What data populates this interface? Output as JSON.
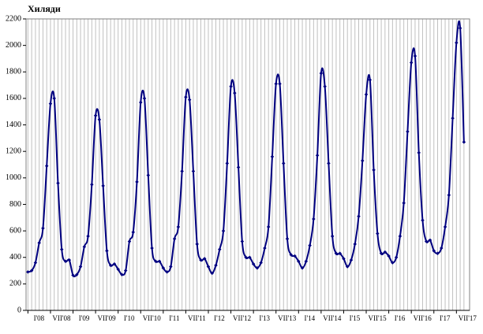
{
  "chart_data": {
    "type": "line",
    "title": "Хиляди",
    "categories": [
      "I'08",
      null,
      null,
      null,
      null,
      null,
      "VII'08",
      null,
      null,
      null,
      null,
      null,
      "I'09",
      null,
      null,
      null,
      null,
      null,
      "VII'09",
      null,
      null,
      null,
      null,
      null,
      "I'10",
      null,
      null,
      null,
      null,
      null,
      "VII'10",
      null,
      null,
      null,
      null,
      null,
      "I'11",
      null,
      null,
      null,
      null,
      null,
      "VII'11",
      null,
      null,
      null,
      null,
      null,
      "I'12",
      null,
      null,
      null,
      null,
      null,
      "VII'12",
      null,
      null,
      null,
      null,
      null,
      "I'13",
      null,
      null,
      null,
      null,
      null,
      "VII'13",
      null,
      null,
      null,
      null,
      null,
      "I'14",
      null,
      null,
      null,
      null,
      null,
      "VII'14",
      null,
      null,
      null,
      null,
      null,
      "I'15",
      null,
      null,
      null,
      null,
      null,
      "VII'15",
      null,
      null,
      null,
      null,
      null,
      "I'16",
      null,
      null,
      null,
      null,
      null,
      "VII'16",
      null,
      null,
      null,
      null,
      null,
      "I'17",
      null,
      null,
      null,
      null,
      null,
      "VII'17",
      null,
      null
    ],
    "values": [
      290,
      300,
      360,
      510,
      620,
      1090,
      1560,
      1600,
      960,
      460,
      370,
      380,
      265,
      270,
      330,
      480,
      560,
      950,
      1470,
      1440,
      940,
      450,
      340,
      350,
      310,
      270,
      300,
      520,
      590,
      970,
      1570,
      1600,
      1020,
      470,
      370,
      370,
      320,
      290,
      330,
      540,
      630,
      1050,
      1610,
      1590,
      1050,
      500,
      380,
      390,
      330,
      280,
      340,
      460,
      600,
      1110,
      1690,
      1640,
      1080,
      520,
      400,
      400,
      350,
      320,
      360,
      470,
      630,
      1160,
      1710,
      1710,
      1110,
      540,
      420,
      410,
      370,
      320,
      370,
      490,
      690,
      1170,
      1790,
      1690,
      1110,
      560,
      430,
      430,
      390,
      330,
      380,
      500,
      710,
      1130,
      1630,
      1740,
      1060,
      580,
      430,
      440,
      410,
      360,
      400,
      560,
      810,
      1350,
      1870,
      1920,
      1190,
      680,
      520,
      530,
      450,
      430,
      470,
      630,
      870,
      1450,
      2020,
      2130,
      1270
    ],
    "color": "#000080",
    "ylim": [
      0,
      2200
    ],
    "yticks": [
      0,
      200,
      400,
      600,
      800,
      1000,
      1200,
      1400,
      1600,
      1800,
      2000,
      2200
    ],
    "xgrid": true
  }
}
